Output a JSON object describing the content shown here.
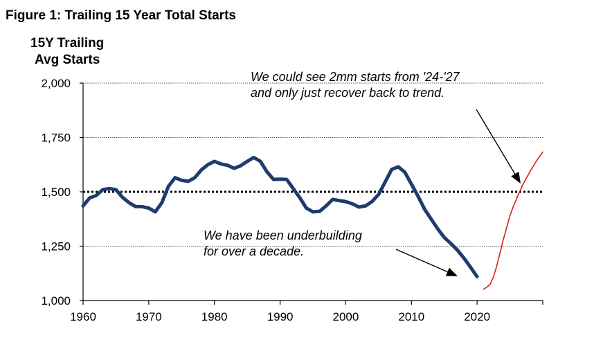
{
  "figure_title": "Figure 1: Trailing 15 Year Total Starts",
  "annotations": {
    "top_line1": "We could see 2mm starts from '24-'27",
    "top_line2": "and only just recover back to trend.",
    "bottom_line1": "We have been underbuilding",
    "bottom_line2": "for over a decade."
  },
  "chart_data": {
    "type": "line",
    "title": "Figure 1: Trailing 15 Year Total Starts",
    "ylabel_line1": "15Y Trailing",
    "ylabel_line2": "Avg Starts",
    "xlabel": "",
    "xlim": [
      1960,
      2030
    ],
    "ylim": [
      1000,
      2000
    ],
    "x_ticks": [
      1960,
      1970,
      1980,
      1990,
      2000,
      2010,
      2020
    ],
    "y_ticks": [
      1000,
      1250,
      1500,
      1750,
      2000
    ],
    "y_tick_labels": [
      "1,000",
      "1,250",
      "1,500",
      "1,750",
      "2,000"
    ],
    "grid": "horizontal dashed",
    "reference_line": {
      "y": 1500,
      "style": "dotted",
      "color": "#000000"
    },
    "series": [
      {
        "color": "#1f3b6e",
        "style": "solid-thick",
        "x": [
          1960,
          1961,
          1962,
          1963,
          1964,
          1965,
          1966,
          1967,
          1968,
          1969,
          1970,
          1971,
          1972,
          1973,
          1974,
          1975,
          1976,
          1977,
          1978,
          1979,
          1980,
          1981,
          1982,
          1983,
          1984,
          1985,
          1986,
          1987,
          1988,
          1989,
          1990,
          1991,
          1992,
          1993,
          1994,
          1995,
          1996,
          1997,
          1998,
          1999,
          2000,
          2001,
          2002,
          2003,
          2004,
          2005,
          2006,
          2007,
          2008,
          2009,
          2010,
          2011,
          2012,
          2013,
          2014,
          2015,
          2016,
          2017,
          2018,
          2019,
          2020
        ],
        "values": [
          1435,
          1472,
          1483,
          1510,
          1515,
          1510,
          1475,
          1450,
          1432,
          1432,
          1425,
          1408,
          1450,
          1525,
          1565,
          1553,
          1548,
          1565,
          1600,
          1625,
          1640,
          1628,
          1622,
          1608,
          1620,
          1640,
          1658,
          1640,
          1592,
          1557,
          1558,
          1557,
          1515,
          1473,
          1425,
          1408,
          1410,
          1435,
          1465,
          1460,
          1455,
          1445,
          1430,
          1435,
          1455,
          1488,
          1545,
          1603,
          1615,
          1590,
          1535,
          1480,
          1420,
          1375,
          1330,
          1290,
          1262,
          1232,
          1195,
          1153,
          1110
        ]
      },
      {
        "color": "#d42020",
        "style": "solid-thin",
        "x": [
          2021,
          2021.5,
          2022,
          2022.5,
          2023,
          2023.5,
          2024,
          2024.5,
          2025,
          2025.5,
          2026,
          2027,
          2028,
          2029,
          2030
        ],
        "values": [
          1052,
          1062,
          1075,
          1110,
          1160,
          1220,
          1282,
          1335,
          1390,
          1432,
          1468,
          1535,
          1590,
          1640,
          1683
        ]
      }
    ]
  }
}
